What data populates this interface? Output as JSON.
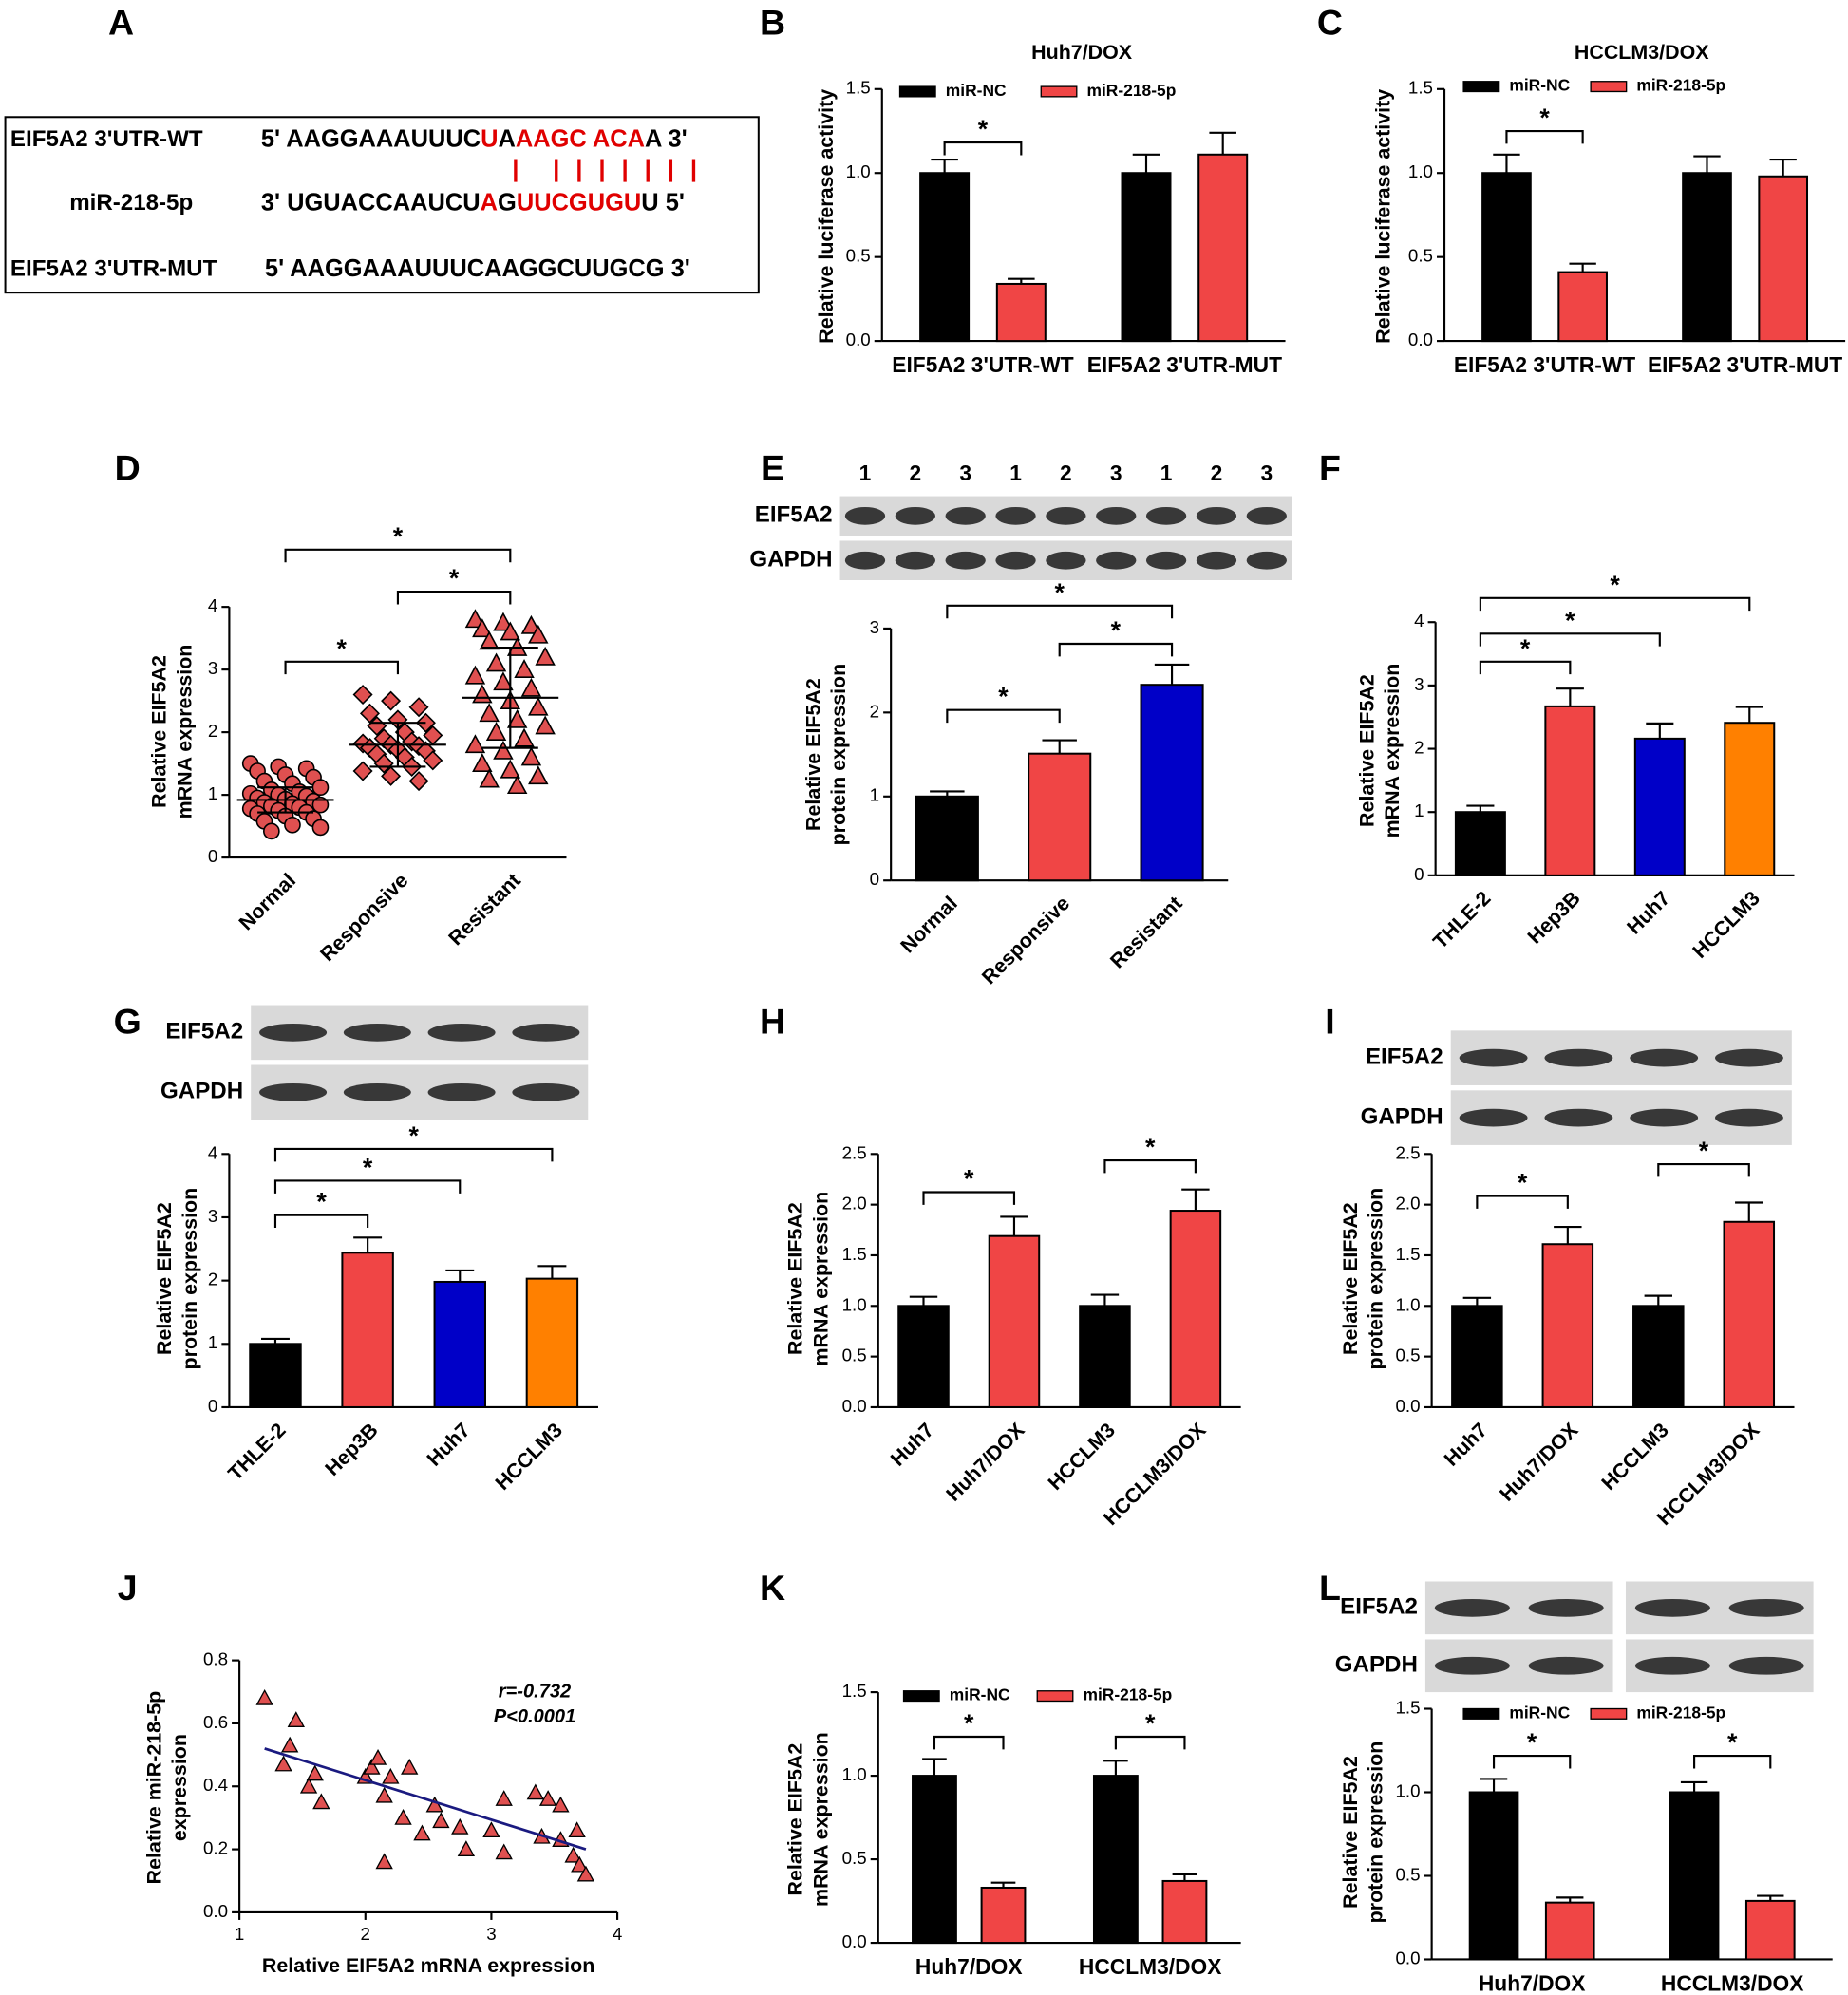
{
  "panel_a": {
    "label": "A",
    "rows": [
      {
        "label": "EIF5A2 3'UTR-WT",
        "segments": [
          {
            "text": "5' AAGGAAAUUUC",
            "color": "#000000"
          },
          {
            "text": "U",
            "color": "#e00000"
          },
          {
            "text": "A",
            "color": "#000000"
          },
          {
            "text": "AAGC ACA",
            "color": "#e00000"
          },
          {
            "text": "A 3'",
            "color": "#000000"
          }
        ]
      },
      {
        "label": "miR-218-5p",
        "segments": [
          {
            "text": "3' UGUACCAAUCU",
            "color": "#000000"
          },
          {
            "text": "A",
            "color": "#e00000"
          },
          {
            "text": "G",
            "color": "#000000"
          },
          {
            "text": "UUCGUGU",
            "color": "#e00000"
          },
          {
            "text": "U 5'",
            "color": "#000000"
          }
        ]
      },
      {
        "label": "EIF5A2 3'UTR-MUT",
        "segments": [
          {
            "text": "5' AAGGAAAUUUCAAGGCUUGCG 3'",
            "color": "#000000"
          }
        ]
      }
    ]
  },
  "chart_data": [
    {
      "label": "B",
      "type": "grouped_bar",
      "title": "Huh7/DOX",
      "ylabel": [
        "Relative luciferase activity"
      ],
      "categories": [
        "EIF5A2 3'UTR-WT",
        "EIF5A2 3'UTR-MUT"
      ],
      "series": [
        {
          "name": "miR-NC",
          "color": "#000000",
          "values": [
            1.0,
            1.0
          ],
          "errors": [
            0.08,
            0.11
          ]
        },
        {
          "name": "miR-218-5p",
          "color": "#f04545",
          "values": [
            0.34,
            1.11
          ],
          "errors": [
            0.03,
            0.13
          ]
        }
      ],
      "ylim": [
        0,
        1.5
      ],
      "yticks": [
        {
          "value": 0,
          "label": "0.0"
        },
        0.5,
        {
          "value": 1,
          "label": "1.0"
        },
        1.5
      ],
      "significance": [
        {
          "group": 0,
          "label": "*"
        }
      ]
    },
    {
      "label": "C",
      "type": "grouped_bar",
      "title": "HCCLM3/DOX",
      "ylabel": [
        "Relative luciferase activity"
      ],
      "categories": [
        "EIF5A2 3'UTR-WT",
        "EIF5A2 3'UTR-MUT"
      ],
      "series": [
        {
          "name": "miR-NC",
          "color": "#000000",
          "values": [
            1.0,
            1.0
          ],
          "errors": [
            0.11,
            0.1
          ]
        },
        {
          "name": "miR-218-5p",
          "color": "#f04545",
          "values": [
            0.41,
            0.98
          ],
          "errors": [
            0.05,
            0.1
          ]
        }
      ],
      "ylim": [
        0,
        1.5
      ],
      "yticks": [
        {
          "value": 0,
          "label": "0.0"
        },
        0.5,
        {
          "value": 1,
          "label": "1.0"
        },
        1.5
      ],
      "significance": [
        {
          "group": 0,
          "label": "*"
        }
      ]
    },
    {
      "label": "D",
      "type": "strip",
      "ylabel": [
        "Relative EIF5A2",
        "mRNA expression"
      ],
      "categories": [
        "Normal",
        "Responsive",
        "Resistant"
      ],
      "points": [
        [
          1.5,
          1.45,
          1.42,
          1.38,
          1.32,
          1.28,
          1.22,
          1.18,
          1.12,
          1.08,
          1.05,
          1.02,
          1.0,
          0.98,
          0.95,
          0.93,
          0.9,
          0.88,
          0.86,
          0.84,
          0.82,
          0.8,
          0.78,
          0.75,
          0.72,
          0.7,
          0.66,
          0.62,
          0.58,
          0.52,
          0.48,
          0.42
        ],
        [
          2.6,
          2.5,
          2.4,
          2.3,
          2.2,
          2.15,
          2.1,
          2.0,
          1.95,
          1.9,
          1.85,
          1.82,
          1.8,
          1.78,
          1.75,
          1.72,
          1.7,
          1.65,
          1.6,
          1.55,
          1.5,
          1.45,
          1.38,
          1.3,
          1.22
        ],
        [
          3.8,
          3.75,
          3.7,
          3.65,
          3.6,
          3.55,
          3.45,
          3.35,
          3.2,
          3.1,
          3.0,
          2.9,
          2.8,
          2.7,
          2.6,
          2.5,
          2.4,
          2.3,
          2.2,
          2.1,
          2.0,
          1.9,
          1.8,
          1.7,
          1.6,
          1.5,
          1.4,
          1.3,
          1.25,
          1.15
        ]
      ],
      "means": [
        0.92,
        1.8,
        2.55
      ],
      "sds": [
        0.2,
        0.35,
        0.8
      ],
      "color": "#e05050",
      "markers": [
        "circle",
        "diamond",
        "triangle"
      ],
      "ylim": [
        0,
        4
      ],
      "yticks": [
        0,
        1,
        2,
        3,
        4
      ],
      "significance": [
        {
          "between": [
            0,
            1
          ],
          "label": "*"
        },
        {
          "between": [
            1,
            2
          ],
          "label": "*"
        },
        {
          "between": [
            0,
            2
          ],
          "label": "*"
        }
      ]
    },
    {
      "label": "E",
      "type": "bar",
      "ylabel": [
        "Relative EIF5A2",
        "protein expression"
      ],
      "categories": [
        "Normal",
        "Responsive",
        "Resistant"
      ],
      "values": [
        1.0,
        1.51,
        2.33
      ],
      "errors": [
        0.06,
        0.16,
        0.24
      ],
      "colors": [
        "#000000",
        "#f04545",
        "#0000c8"
      ],
      "blot": {
        "rows": [
          "EIF5A2",
          "GAPDH"
        ],
        "lanes": [
          "1",
          "2",
          "3",
          "1",
          "2",
          "3",
          "1",
          "2",
          "3"
        ]
      },
      "ylim": [
        0,
        3
      ],
      "yticks": [
        0,
        1,
        2,
        3
      ],
      "significance": [
        {
          "between": [
            0,
            1
          ],
          "label": "*"
        },
        {
          "between": [
            1,
            2
          ],
          "label": "*"
        },
        {
          "between": [
            0,
            2
          ],
          "label": "*"
        }
      ]
    },
    {
      "label": "F",
      "type": "bar",
      "ylabel": [
        "Relative EIF5A2",
        "mRNA expression"
      ],
      "categories": [
        "THLE-2",
        "Hep3B",
        "Huh7",
        "HCCLM3"
      ],
      "values": [
        1.0,
        2.67,
        2.16,
        2.41
      ],
      "errors": [
        0.1,
        0.28,
        0.24,
        0.25
      ],
      "colors": [
        "#000000",
        "#f04545",
        "#0000c8",
        "#ff8000"
      ],
      "ylim": [
        0,
        4
      ],
      "yticks": [
        0,
        1,
        2,
        3,
        4
      ],
      "significance": [
        {
          "between": [
            0,
            1
          ],
          "label": "*"
        },
        {
          "between": [
            0,
            2
          ],
          "label": "*"
        },
        {
          "between": [
            0,
            3
          ],
          "label": "*"
        }
      ]
    },
    {
      "label": "G",
      "type": "bar",
      "ylabel": [
        "Relative EIF5A2",
        "protein expression"
      ],
      "categories": [
        "THLE-2",
        "Hep3B",
        "Huh7",
        "HCCLM3"
      ],
      "values": [
        1.0,
        2.44,
        1.98,
        2.03
      ],
      "errors": [
        0.08,
        0.24,
        0.18,
        0.2
      ],
      "colors": [
        "#000000",
        "#f04545",
        "#0000c8",
        "#ff8000"
      ],
      "blot": {
        "rows": [
          "EIF5A2",
          "GAPDH"
        ]
      },
      "ylim": [
        0,
        4
      ],
      "yticks": [
        0,
        1,
        2,
        3,
        4
      ],
      "significance": [
        {
          "between": [
            0,
            1
          ],
          "label": "*"
        },
        {
          "between": [
            0,
            2
          ],
          "label": "*"
        },
        {
          "between": [
            0,
            3
          ],
          "label": "*"
        }
      ]
    },
    {
      "label": "H",
      "type": "bar",
      "ylabel": [
        "Relative EIF5A2",
        "mRNA expression"
      ],
      "categories": [
        "Huh7",
        "Huh7/DOX",
        "HCCLM3",
        "HCCLM3/DOX"
      ],
      "values": [
        1.0,
        1.69,
        1.0,
        1.94
      ],
      "errors": [
        0.09,
        0.19,
        0.11,
        0.21
      ],
      "colors": [
        "#000000",
        "#f04545",
        "#000000",
        "#f04545"
      ],
      "ylim": [
        0,
        2.5
      ],
      "yticks": [
        {
          "value": 0,
          "label": "0.0"
        },
        0.5,
        {
          "value": 1,
          "label": "1.0"
        },
        1.5,
        {
          "value": 2,
          "label": "2.0"
        },
        2.5
      ],
      "significance": [
        {
          "between": [
            0,
            1
          ],
          "label": "*"
        },
        {
          "between": [
            2,
            3
          ],
          "label": "*"
        }
      ]
    },
    {
      "label": "I",
      "type": "bar",
      "ylabel": [
        "Relative EIF5A2",
        "protein expression"
      ],
      "categories": [
        "Huh7",
        "Huh7/DOX",
        "HCCLM3",
        "HCCLM3/DOX"
      ],
      "values": [
        1.0,
        1.61,
        1.0,
        1.83
      ],
      "errors": [
        0.08,
        0.17,
        0.1,
        0.19
      ],
      "colors": [
        "#000000",
        "#f04545",
        "#000000",
        "#f04545"
      ],
      "blot": {
        "rows": [
          "EIF5A2",
          "GAPDH"
        ]
      },
      "ylim": [
        0,
        2.5
      ],
      "yticks": [
        {
          "value": 0,
          "label": "0.0"
        },
        0.5,
        {
          "value": 1,
          "label": "1.0"
        },
        1.5,
        {
          "value": 2,
          "label": "2.0"
        },
        2.5
      ],
      "significance": [
        {
          "between": [
            0,
            1
          ],
          "label": "*"
        },
        {
          "between": [
            2,
            3
          ],
          "label": "*"
        }
      ]
    },
    {
      "label": "J",
      "type": "scatter",
      "xlabel": "Relative EIF5A2 mRNA expression",
      "ylabel": [
        "Relative miR-218-5p",
        "expression"
      ],
      "x": [
        1.2,
        1.4,
        1.45,
        1.35,
        1.6,
        1.55,
        1.65,
        2.0,
        2.05,
        2.1,
        2.15,
        2.2,
        2.35,
        2.3,
        2.15,
        2.45,
        2.55,
        2.6,
        2.75,
        2.8,
        3.0,
        3.1,
        3.1,
        3.35,
        3.45,
        3.55,
        3.4,
        3.55,
        3.65,
        3.7,
        3.75,
        3.68
      ],
      "y": [
        0.68,
        0.53,
        0.61,
        0.47,
        0.44,
        0.4,
        0.35,
        0.43,
        0.46,
        0.49,
        0.37,
        0.43,
        0.46,
        0.3,
        0.16,
        0.25,
        0.34,
        0.29,
        0.27,
        0.2,
        0.26,
        0.36,
        0.19,
        0.38,
        0.36,
        0.34,
        0.24,
        0.23,
        0.18,
        0.15,
        0.12,
        0.26
      ],
      "color": "#e05050",
      "fit": {
        "x": [
          1.2,
          3.75
        ],
        "y": [
          0.52,
          0.2
        ],
        "color": "#1a1a80"
      },
      "annotations": [
        "r=-0.732",
        "P<0.0001"
      ],
      "xlim": [
        1,
        4
      ],
      "xticks": [
        1,
        2,
        3,
        4
      ],
      "ylim": [
        0,
        0.8
      ],
      "yticks": [
        {
          "value": 0,
          "label": "0.0"
        },
        0.2,
        0.4,
        0.6,
        0.8
      ]
    },
    {
      "label": "K",
      "type": "grouped_bar",
      "ylabel": [
        "Relative EIF5A2",
        "mRNA expression"
      ],
      "categories": [
        "Huh7/DOX",
        "HCCLM3/DOX"
      ],
      "series": [
        {
          "name": "miR-NC",
          "color": "#000000",
          "values": [
            1.0,
            1.0
          ],
          "errors": [
            0.1,
            0.09
          ]
        },
        {
          "name": "miR-218-5p",
          "color": "#f04545",
          "values": [
            0.33,
            0.37
          ],
          "errors": [
            0.03,
            0.04
          ]
        }
      ],
      "ylim": [
        0,
        1.5
      ],
      "yticks": [
        {
          "value": 0,
          "label": "0.0"
        },
        0.5,
        {
          "value": 1,
          "label": "1.0"
        },
        1.5
      ],
      "significance": [
        {
          "group": 0,
          "label": "*"
        },
        {
          "group": 1,
          "label": "*"
        }
      ]
    },
    {
      "label": "L",
      "type": "grouped_bar",
      "ylabel": [
        "Relative EIF5A2",
        "protein expression"
      ],
      "categories": [
        "Huh7/DOX",
        "HCCLM3/DOX"
      ],
      "series": [
        {
          "name": "miR-NC",
          "color": "#000000",
          "values": [
            1.0,
            1.0
          ],
          "errors": [
            0.08,
            0.06
          ]
        },
        {
          "name": "miR-218-5p",
          "color": "#f04545",
          "values": [
            0.34,
            0.35
          ],
          "errors": [
            0.03,
            0.03
          ]
        }
      ],
      "blot": {
        "rows": [
          "EIF5A2",
          "GAPDH"
        ]
      },
      "ylim": [
        0,
        1.5
      ],
      "yticks": [
        {
          "value": 0,
          "label": "0.0"
        },
        0.5,
        {
          "value": 1,
          "label": "1.0"
        },
        1.5
      ],
      "significance": [
        {
          "group": 0,
          "label": "*"
        },
        {
          "group": 1,
          "label": "*"
        }
      ]
    }
  ]
}
